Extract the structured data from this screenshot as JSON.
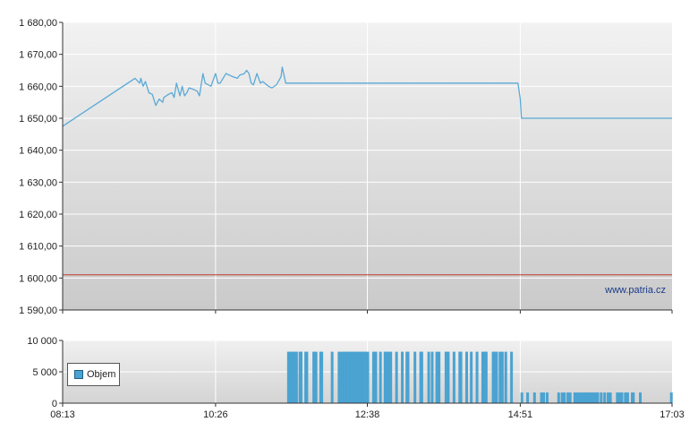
{
  "chart_data": [
    {
      "type": "line",
      "title": "",
      "xlabel": "",
      "ylabel": "",
      "x_ticks": [
        "08:13",
        "10:26",
        "12:38",
        "14:51",
        "17:03"
      ],
      "x_range": [
        "08:13",
        "17:03"
      ],
      "y_ticks": [
        "1 590,00",
        "1 600,00",
        "1 610,00",
        "1 620,00",
        "1 630,00",
        "1 640,00",
        "1 650,00",
        "1 660,00",
        "1 670,00",
        "1 680,00"
      ],
      "ylim": [
        1590,
        1680
      ],
      "grid": true,
      "reference_line": {
        "value": 1601,
        "color": "#c0392b"
      },
      "series": [
        {
          "color": "#5aaad6",
          "points": [
            [
              "08:13",
              1647.5
            ],
            [
              "09:16",
              1662.5
            ],
            [
              "09:20",
              1661
            ],
            [
              "09:21",
              1662.5
            ],
            [
              "09:23",
              1660
            ],
            [
              "09:25",
              1661.5
            ],
            [
              "09:28",
              1658
            ],
            [
              "09:31",
              1657.5
            ],
            [
              "09:34",
              1654
            ],
            [
              "09:37",
              1656
            ],
            [
              "09:40",
              1655
            ],
            [
              "09:41",
              1656.5
            ],
            [
              "09:45",
              1657.5
            ],
            [
              "09:48",
              1658
            ],
            [
              "09:50",
              1656.5
            ],
            [
              "09:52",
              1661
            ],
            [
              "09:55",
              1657
            ],
            [
              "09:57",
              1660
            ],
            [
              "09:59",
              1657
            ],
            [
              "10:01",
              1658
            ],
            [
              "10:03",
              1659.5
            ],
            [
              "10:07",
              1659
            ],
            [
              "10:10",
              1658.5
            ],
            [
              "10:12",
              1657
            ],
            [
              "10:15",
              1664
            ],
            [
              "10:17",
              1661
            ],
            [
              "10:22",
              1660
            ],
            [
              "10:24",
              1662
            ],
            [
              "10:26",
              1664
            ],
            [
              "10:28",
              1661
            ],
            [
              "10:30",
              1661
            ],
            [
              "10:35",
              1664
            ],
            [
              "10:41",
              1663
            ],
            [
              "10:45",
              1662.5
            ],
            [
              "10:47",
              1663.5
            ],
            [
              "10:51",
              1664
            ],
            [
              "10:53",
              1665
            ],
            [
              "10:55",
              1664
            ],
            [
              "10:57",
              1661
            ],
            [
              "10:59",
              1660.5
            ],
            [
              "11:02",
              1664
            ],
            [
              "11:05",
              1661
            ],
            [
              "11:07",
              1661.5
            ],
            [
              "11:12",
              1660
            ],
            [
              "11:15",
              1659.5
            ],
            [
              "11:19",
              1660.5
            ],
            [
              "11:23",
              1663
            ],
            [
              "11:24",
              1666
            ],
            [
              "11:27",
              1661
            ],
            [
              "11:29",
              1661
            ],
            [
              "14:49",
              1661
            ],
            [
              "14:51",
              1656
            ],
            [
              "14:52",
              1650
            ],
            [
              "17:03",
              1650
            ]
          ]
        }
      ],
      "watermark": "www.patria.cz"
    },
    {
      "type": "bar",
      "title": "",
      "x_ticks": [
        "08:13",
        "10:26",
        "12:38",
        "14:51",
        "17:03"
      ],
      "x_range": [
        "08:13",
        "17:03"
      ],
      "y_ticks": [
        "0",
        "5 000",
        "10 000"
      ],
      "ylim": [
        0,
        10000
      ],
      "grid": true,
      "legend": {
        "position": "left",
        "entries": [
          "Objem"
        ]
      },
      "series": [
        {
          "name": "Objem",
          "color": "#4aa3d1",
          "bars": [
            [
              "11:29",
              8200
            ],
            [
              "11:30",
              8200
            ],
            [
              "11:32",
              8200
            ],
            [
              "11:33",
              8200
            ],
            [
              "11:35",
              8200
            ],
            [
              "11:36",
              8200
            ],
            [
              "11:39",
              8200
            ],
            [
              "11:40",
              8200
            ],
            [
              "11:44",
              8200
            ],
            [
              "11:45",
              8200
            ],
            [
              "11:51",
              8200
            ],
            [
              "11:53",
              8200
            ],
            [
              "11:57",
              8200
            ],
            [
              "11:58",
              8200
            ],
            [
              "12:07",
              8200
            ],
            [
              "12:13",
              8200
            ],
            [
              "12:15",
              8200
            ],
            [
              "12:17",
              8200
            ],
            [
              "12:18",
              8200
            ],
            [
              "12:20",
              8200
            ],
            [
              "12:21",
              8200
            ],
            [
              "12:23",
              8200
            ],
            [
              "12:24",
              8200
            ],
            [
              "12:26",
              8200
            ],
            [
              "12:27",
              8200
            ],
            [
              "12:29",
              8200
            ],
            [
              "12:30",
              8200
            ],
            [
              "12:32",
              8200
            ],
            [
              "12:33",
              8200
            ],
            [
              "12:35",
              8200
            ],
            [
              "12:36",
              8200
            ],
            [
              "12:38",
              8200
            ],
            [
              "12:43",
              8200
            ],
            [
              "12:45",
              8200
            ],
            [
              "12:49",
              8200
            ],
            [
              "12:53",
              8200
            ],
            [
              "12:54",
              8200
            ],
            [
              "12:56",
              8200
            ],
            [
              "12:58",
              8200
            ],
            [
              "13:03",
              8200
            ],
            [
              "13:08",
              8200
            ],
            [
              "13:12",
              8200
            ],
            [
              "13:13",
              8200
            ],
            [
              "13:19",
              8200
            ],
            [
              "13:24",
              8200
            ],
            [
              "13:25",
              8200
            ],
            [
              "13:31",
              8200
            ],
            [
              "13:34",
              8200
            ],
            [
              "13:38",
              8200
            ],
            [
              "13:40",
              8200
            ],
            [
              "13:46",
              8200
            ],
            [
              "13:48",
              8200
            ],
            [
              "13:53",
              8200
            ],
            [
              "13:58",
              8200
            ],
            [
              "13:59",
              8200
            ],
            [
              "14:04",
              8200
            ],
            [
              "14:08",
              8200
            ],
            [
              "14:13",
              8200
            ],
            [
              "14:18",
              8200
            ],
            [
              "14:20",
              8200
            ],
            [
              "14:21",
              8200
            ],
            [
              "14:27",
              8200
            ],
            [
              "14:28",
              8200
            ],
            [
              "14:30",
              8200
            ],
            [
              "14:33",
              8200
            ],
            [
              "14:35",
              8200
            ],
            [
              "14:38",
              8200
            ],
            [
              "14:43",
              8200
            ],
            [
              "14:52",
              1700
            ],
            [
              "14:57",
              1700
            ],
            [
              "15:03",
              1700
            ],
            [
              "15:09",
              1700
            ],
            [
              "15:11",
              1700
            ],
            [
              "15:14",
              1700
            ],
            [
              "15:24",
              1700
            ],
            [
              "15:27",
              1700
            ],
            [
              "15:29",
              1700
            ],
            [
              "15:32",
              1700
            ],
            [
              "15:34",
              1700
            ],
            [
              "15:38",
              1700
            ],
            [
              "15:40",
              1700
            ],
            [
              "15:42",
              1700
            ],
            [
              "15:43",
              1700
            ],
            [
              "15:45",
              1700
            ],
            [
              "15:47",
              1700
            ],
            [
              "15:48",
              1700
            ],
            [
              "15:50",
              1700
            ],
            [
              "15:52",
              1700
            ],
            [
              "15:53",
              1700
            ],
            [
              "15:55",
              1700
            ],
            [
              "15:57",
              1700
            ],
            [
              "15:58",
              1700
            ],
            [
              "16:01",
              1700
            ],
            [
              "16:04",
              1700
            ],
            [
              "16:07",
              1700
            ],
            [
              "16:09",
              1700
            ],
            [
              "16:15",
              1700
            ],
            [
              "16:17",
              1700
            ],
            [
              "16:19",
              1700
            ],
            [
              "16:22",
              1700
            ],
            [
              "16:24",
              1700
            ],
            [
              "16:28",
              1700
            ],
            [
              "16:29",
              1700
            ],
            [
              "16:35",
              1700
            ],
            [
              "17:02",
              1700
            ]
          ]
        }
      ]
    }
  ]
}
